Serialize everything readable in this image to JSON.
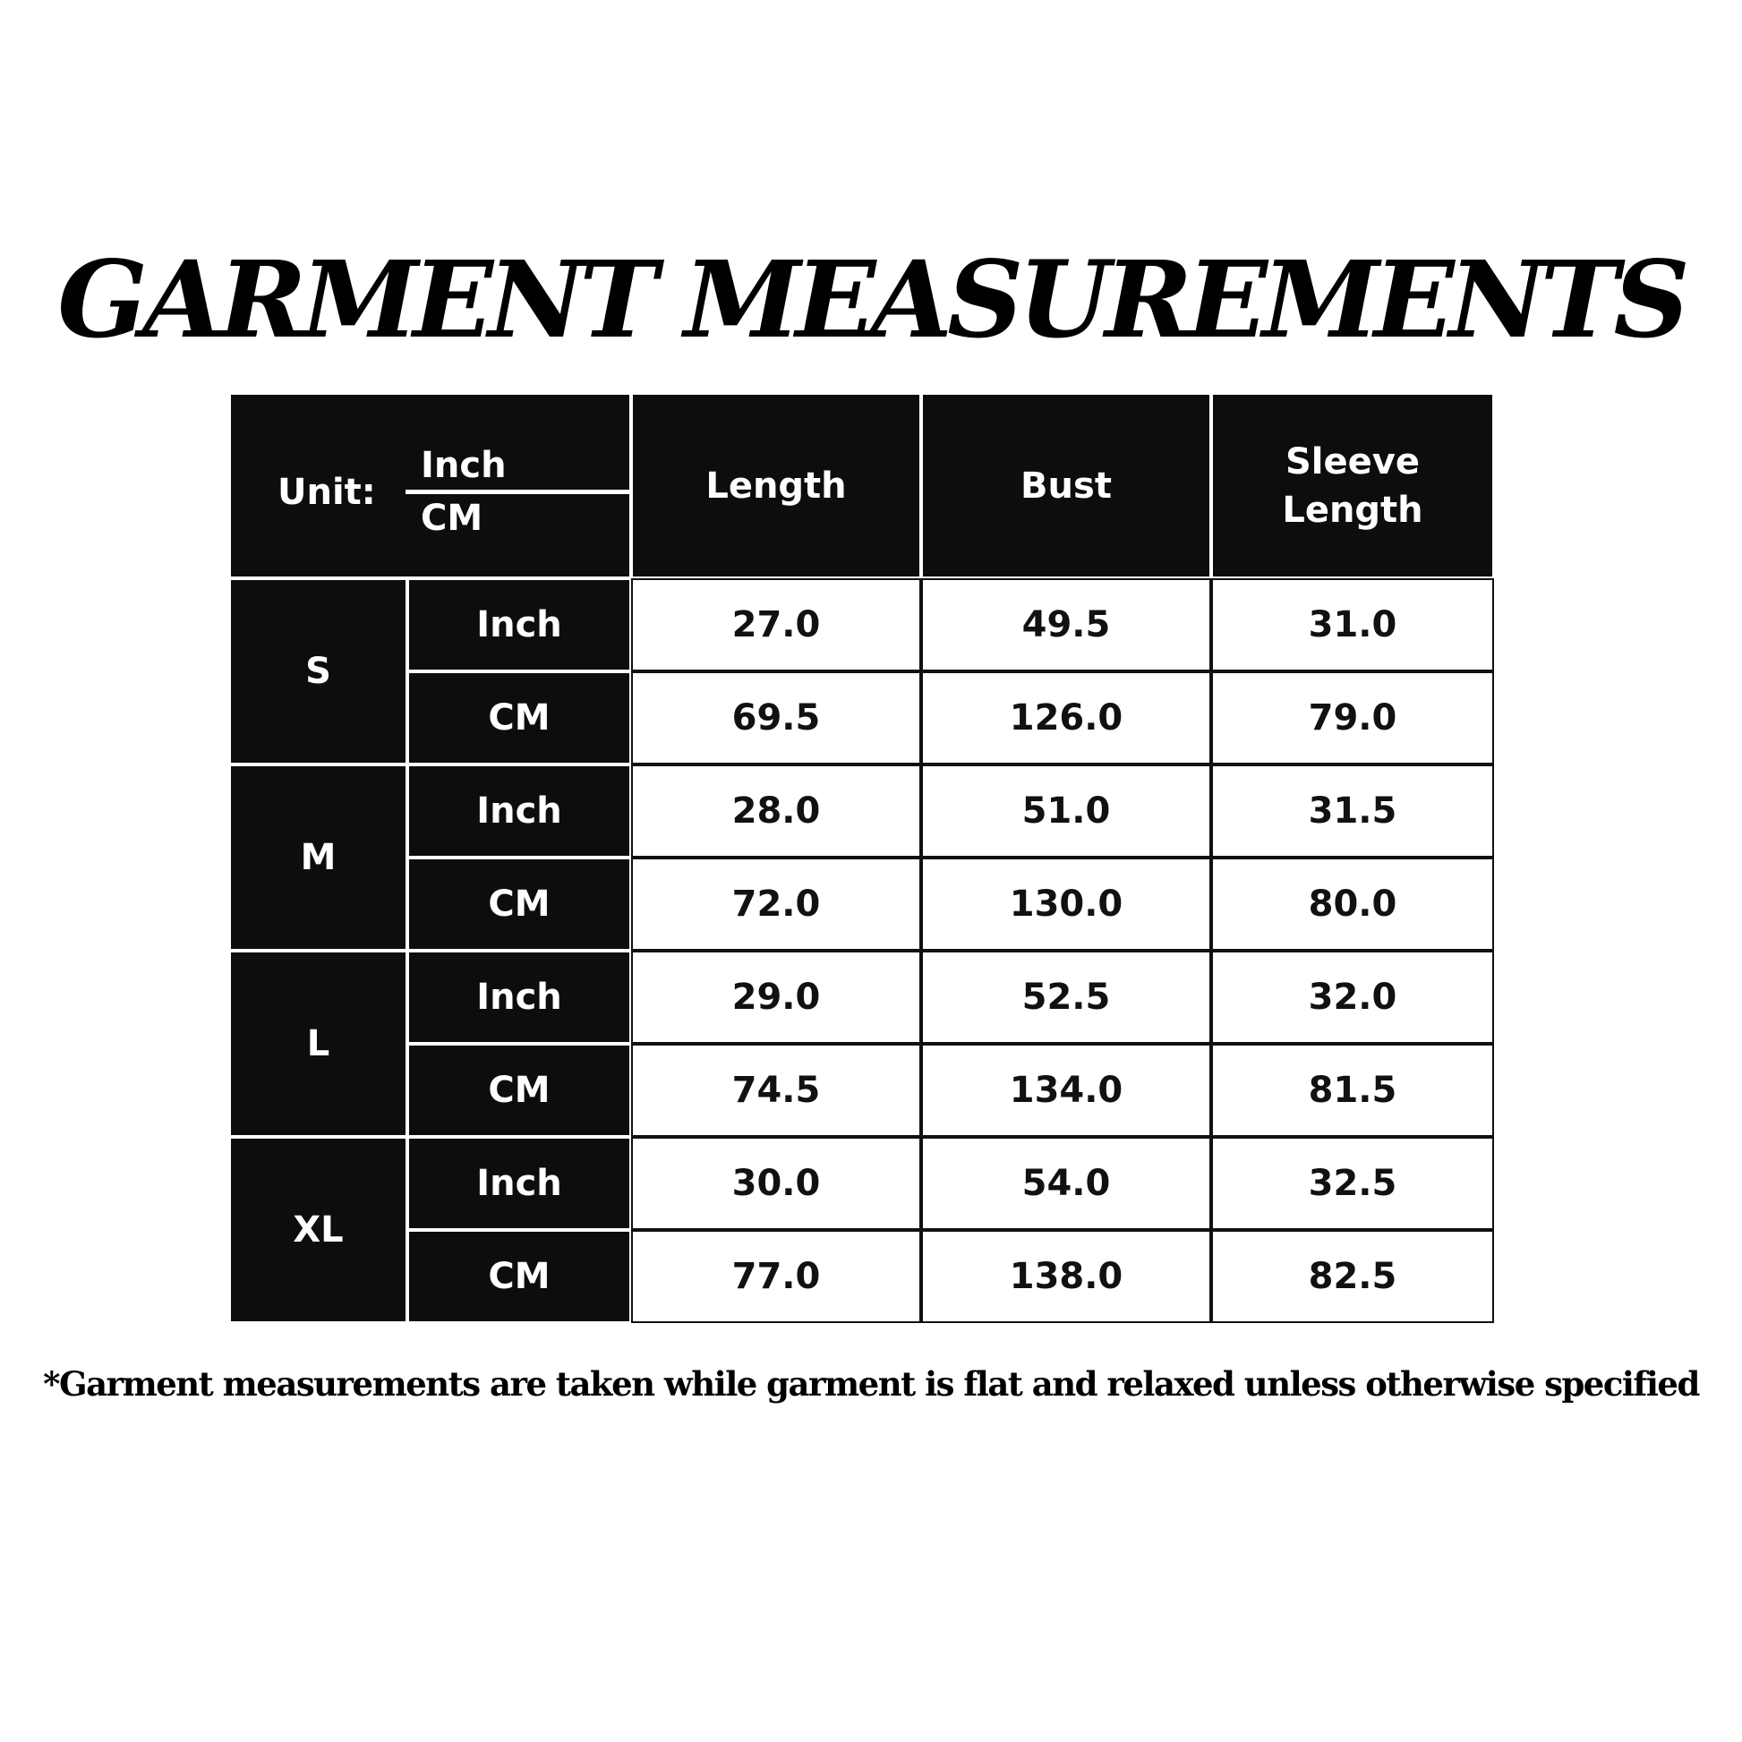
{
  "title": "GARMENT MEASUREMENTS",
  "table": {
    "unit_label": "Unit:",
    "unit_top": "Inch",
    "unit_bottom": "CM",
    "headers": [
      "Length",
      "Bust",
      "Sleeve Length"
    ],
    "sizes": [
      {
        "size": "S",
        "rows": [
          {
            "unit": "Inch",
            "values": [
              "27.0",
              "49.5",
              "31.0"
            ]
          },
          {
            "unit": "CM",
            "values": [
              "69.5",
              "126.0",
              "79.0"
            ]
          }
        ]
      },
      {
        "size": "M",
        "rows": [
          {
            "unit": "Inch",
            "values": [
              "28.0",
              "51.0",
              "31.5"
            ]
          },
          {
            "unit": "CM",
            "values": [
              "72.0",
              "130.0",
              "80.0"
            ]
          }
        ]
      },
      {
        "size": "L",
        "rows": [
          {
            "unit": "Inch",
            "values": [
              "29.0",
              "52.5",
              "32.0"
            ]
          },
          {
            "unit": "CM",
            "values": [
              "74.5",
              "134.0",
              "81.5"
            ]
          }
        ]
      },
      {
        "size": "XL",
        "rows": [
          {
            "unit": "Inch",
            "values": [
              "30.0",
              "54.0",
              "32.5"
            ]
          },
          {
            "unit": "CM",
            "values": [
              "77.0",
              "138.0",
              "82.5"
            ]
          }
        ]
      }
    ]
  },
  "footnote": "*Garment measurements are taken while garment is flat and relaxed unless otherwise specified",
  "colors": {
    "header_bg": "#0d0d0d",
    "cell_bg": "#ffffff",
    "text_dark": "#111111"
  }
}
